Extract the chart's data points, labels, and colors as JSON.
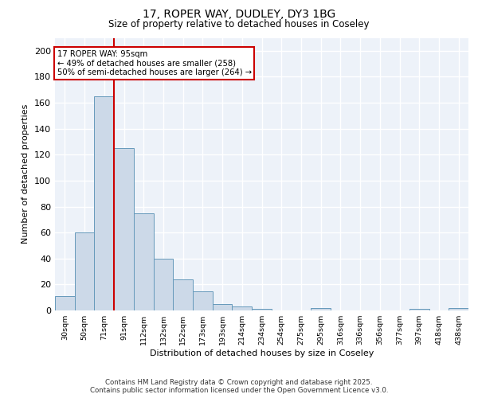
{
  "title_line1": "17, ROPER WAY, DUDLEY, DY3 1BG",
  "title_line2": "Size of property relative to detached houses in Coseley",
  "xlabel": "Distribution of detached houses by size in Coseley",
  "ylabel": "Number of detached properties",
  "categories": [
    "30sqm",
    "50sqm",
    "71sqm",
    "91sqm",
    "112sqm",
    "132sqm",
    "152sqm",
    "173sqm",
    "193sqm",
    "214sqm",
    "234sqm",
    "254sqm",
    "275sqm",
    "295sqm",
    "316sqm",
    "336sqm",
    "356sqm",
    "377sqm",
    "397sqm",
    "418sqm",
    "438sqm"
  ],
  "values": [
    11,
    60,
    165,
    125,
    75,
    40,
    24,
    15,
    5,
    3,
    1,
    0,
    0,
    2,
    0,
    0,
    0,
    0,
    1,
    0,
    2
  ],
  "bar_color": "#ccd9e8",
  "bar_edge_color": "#6699bb",
  "red_line_x": 2.5,
  "annotation_text": "17 ROPER WAY: 95sqm\n← 49% of detached houses are smaller (258)\n50% of semi-detached houses are larger (264) →",
  "annotation_box_color": "#ffffff",
  "annotation_box_edge_color": "#cc0000",
  "red_line_color": "#cc0000",
  "ylim": [
    0,
    210
  ],
  "yticks": [
    0,
    20,
    40,
    60,
    80,
    100,
    120,
    140,
    160,
    180,
    200
  ],
  "background_color": "#edf2f9",
  "grid_color": "#ffffff",
  "footer_line1": "Contains HM Land Registry data © Crown copyright and database right 2025.",
  "footer_line2": "Contains public sector information licensed under the Open Government Licence v3.0."
}
